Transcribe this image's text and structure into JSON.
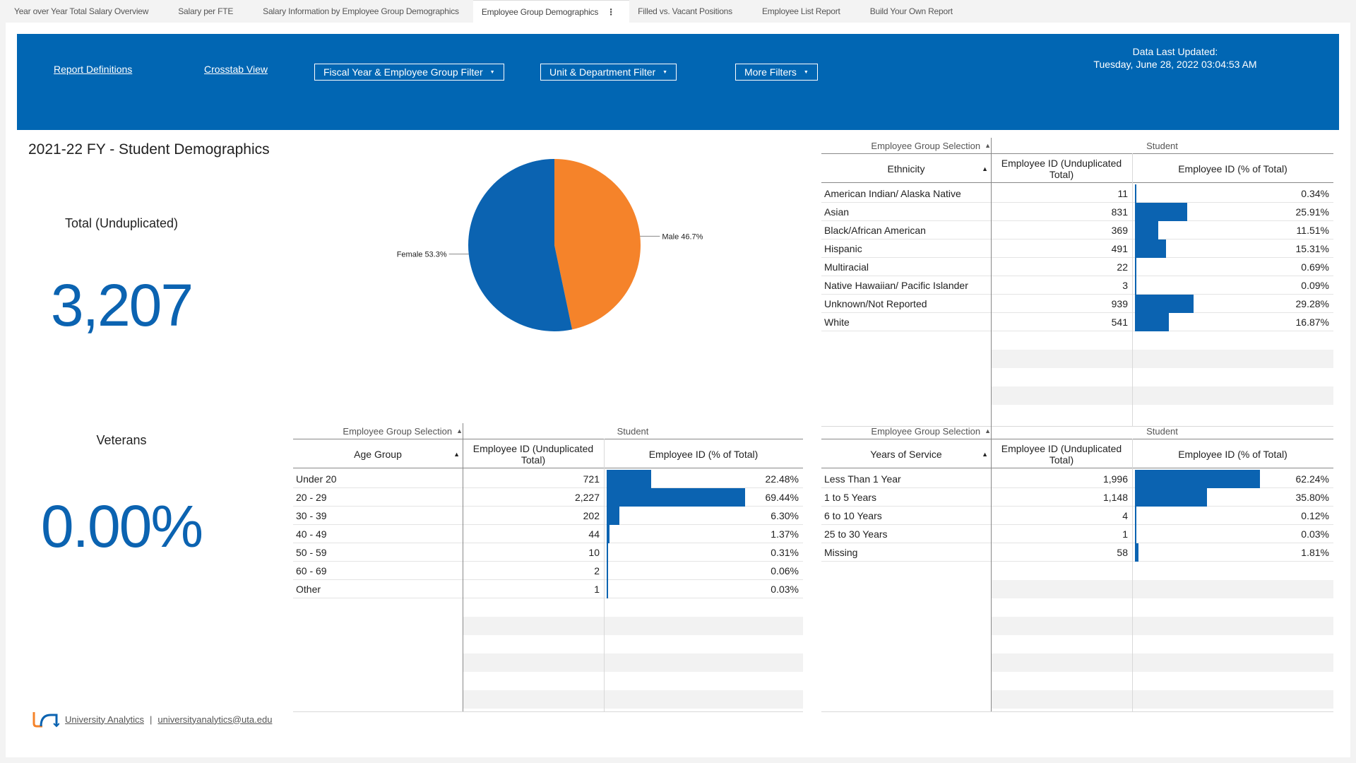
{
  "tabs": [
    {
      "label": "Year over Year Total Salary Overview",
      "active": false
    },
    {
      "label": "Salary per FTE",
      "active": false
    },
    {
      "label": "Salary Information by Employee Group Demographics",
      "active": false
    },
    {
      "label": "Employee Group Demographics",
      "active": true
    },
    {
      "label": "Filled vs. Vacant Positions",
      "active": false
    },
    {
      "label": "Employee List Report",
      "active": false
    },
    {
      "label": "Build Your Own Report",
      "active": false
    }
  ],
  "banner": {
    "report_definitions": "Report Definitions",
    "crosstab_view": "Crosstab View",
    "filter_fy": "Fiscal Year & Employee Group Filter",
    "filter_unit": "Unit & Department Filter",
    "filter_more": "More Filters",
    "updated_label": "Data Last Updated:",
    "updated_value": "Tuesday, June 28, 2022 03:04:53 AM",
    "color": "#0166b3"
  },
  "title": "2021-22 FY - Student Demographics",
  "kpi_total": {
    "label": "Total (Unduplicated)",
    "value": "3,207"
  },
  "kpi_veterans": {
    "label": "Veterans",
    "value": "0.00%"
  },
  "chart_data": {
    "type": "pie",
    "slices": [
      {
        "name": "Male",
        "value": 46.7,
        "label": "Male 46.7%",
        "color": "#f5832a"
      },
      {
        "name": "Female",
        "value": 53.3,
        "label": "Female 53.3%",
        "color": "#0b63b1"
      }
    ]
  },
  "ethnicity_table": {
    "selection_header": "Employee Group Selection",
    "group_header": "Student",
    "category_header": "Ethnicity",
    "count_header": "Employee ID (Unduplicated Total)",
    "pct_header": "Employee ID (% of Total)",
    "rows": [
      {
        "category": "American Indian/ Alaska Native",
        "count": "11",
        "pct": "0.34%",
        "value": 0.34
      },
      {
        "category": "Asian",
        "count": "831",
        "pct": "25.91%",
        "value": 25.91
      },
      {
        "category": "Black/African American",
        "count": "369",
        "pct": "11.51%",
        "value": 11.51
      },
      {
        "category": "Hispanic",
        "count": "491",
        "pct": "15.31%",
        "value": 15.31
      },
      {
        "category": "Multiracial",
        "count": "22",
        "pct": "0.69%",
        "value": 0.69
      },
      {
        "category": "Native Hawaiian/ Pacific Islander",
        "count": "3",
        "pct": "0.09%",
        "value": 0.09
      },
      {
        "category": "Unknown/Not Reported",
        "count": "939",
        "pct": "29.28%",
        "value": 29.28
      },
      {
        "category": "White",
        "count": "541",
        "pct": "16.87%",
        "value": 16.87
      }
    ]
  },
  "age_table": {
    "selection_header": "Employee Group Selection",
    "group_header": "Student",
    "category_header": "Age Group",
    "count_header": "Employee ID (Unduplicated Total)",
    "pct_header": "Employee ID (% of Total)",
    "rows": [
      {
        "category": "Under 20",
        "count": "721",
        "pct": "22.48%",
        "value": 22.48
      },
      {
        "category": "20 - 29",
        "count": "2,227",
        "pct": "69.44%",
        "value": 69.44
      },
      {
        "category": "30 - 39",
        "count": "202",
        "pct": "6.30%",
        "value": 6.3
      },
      {
        "category": "40 - 49",
        "count": "44",
        "pct": "1.37%",
        "value": 1.37
      },
      {
        "category": "50 - 59",
        "count": "10",
        "pct": "0.31%",
        "value": 0.31
      },
      {
        "category": "60 - 69",
        "count": "2",
        "pct": "0.06%",
        "value": 0.06
      },
      {
        "category": "Other",
        "count": "1",
        "pct": "0.03%",
        "value": 0.03
      }
    ]
  },
  "service_table": {
    "selection_header": "Employee Group Selection",
    "group_header": "Student",
    "category_header": "Years of Service",
    "count_header": "Employee ID (Unduplicated Total)",
    "pct_header": "Employee ID (% of Total)",
    "rows": [
      {
        "category": "Less Than 1 Year",
        "count": "1,996",
        "pct": "62.24%",
        "value": 62.24
      },
      {
        "category": "1 to 5 Years",
        "count": "1,148",
        "pct": "35.80%",
        "value": 35.8
      },
      {
        "category": "6 to 10 Years",
        "count": "4",
        "pct": "0.12%",
        "value": 0.12
      },
      {
        "category": "25 to 30 Years",
        "count": "1",
        "pct": "0.03%",
        "value": 0.03
      },
      {
        "category": "Missing",
        "count": "58",
        "pct": "1.81%",
        "value": 1.81
      }
    ]
  },
  "footer": {
    "link1": "University Analytics",
    "separator": "|",
    "link2": "universityanalytics@uta.edu"
  }
}
